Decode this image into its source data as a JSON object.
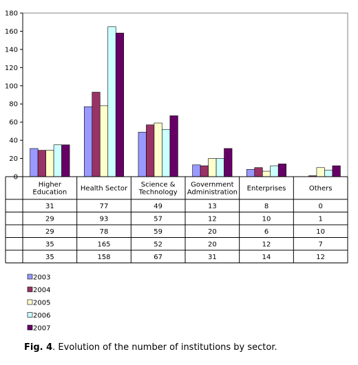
{
  "caption": {
    "label": "Fig. 4",
    "text": ". Evolution of the number of institutions by sector."
  },
  "chart_data": {
    "type": "bar",
    "categories": [
      [
        "Higher",
        "Education"
      ],
      [
        "Health Sector"
      ],
      [
        "Science &",
        "Technology"
      ],
      [
        "Government",
        "Administration"
      ],
      [
        "Enterprises"
      ],
      [
        "Others"
      ]
    ],
    "series": [
      {
        "name": "2003",
        "color": "#9999ff",
        "values": [
          31,
          77,
          49,
          13,
          8,
          0
        ]
      },
      {
        "name": "2004",
        "color": "#993366",
        "values": [
          29,
          93,
          57,
          12,
          10,
          1
        ]
      },
      {
        "name": "2005",
        "color": "#ffffcc",
        "values": [
          29,
          78,
          59,
          20,
          6,
          10
        ]
      },
      {
        "name": "2006",
        "color": "#ccffff",
        "values": [
          35,
          165,
          52,
          20,
          12,
          7
        ]
      },
      {
        "name": "2007",
        "color": "#660066",
        "values": [
          35,
          158,
          67,
          31,
          14,
          12
        ]
      }
    ],
    "ylim": [
      0,
      180
    ],
    "yticks": [
      0,
      20,
      40,
      60,
      80,
      100,
      120,
      140,
      160,
      180
    ],
    "grid": false,
    "legend": "bottom-left",
    "data_table": true
  }
}
